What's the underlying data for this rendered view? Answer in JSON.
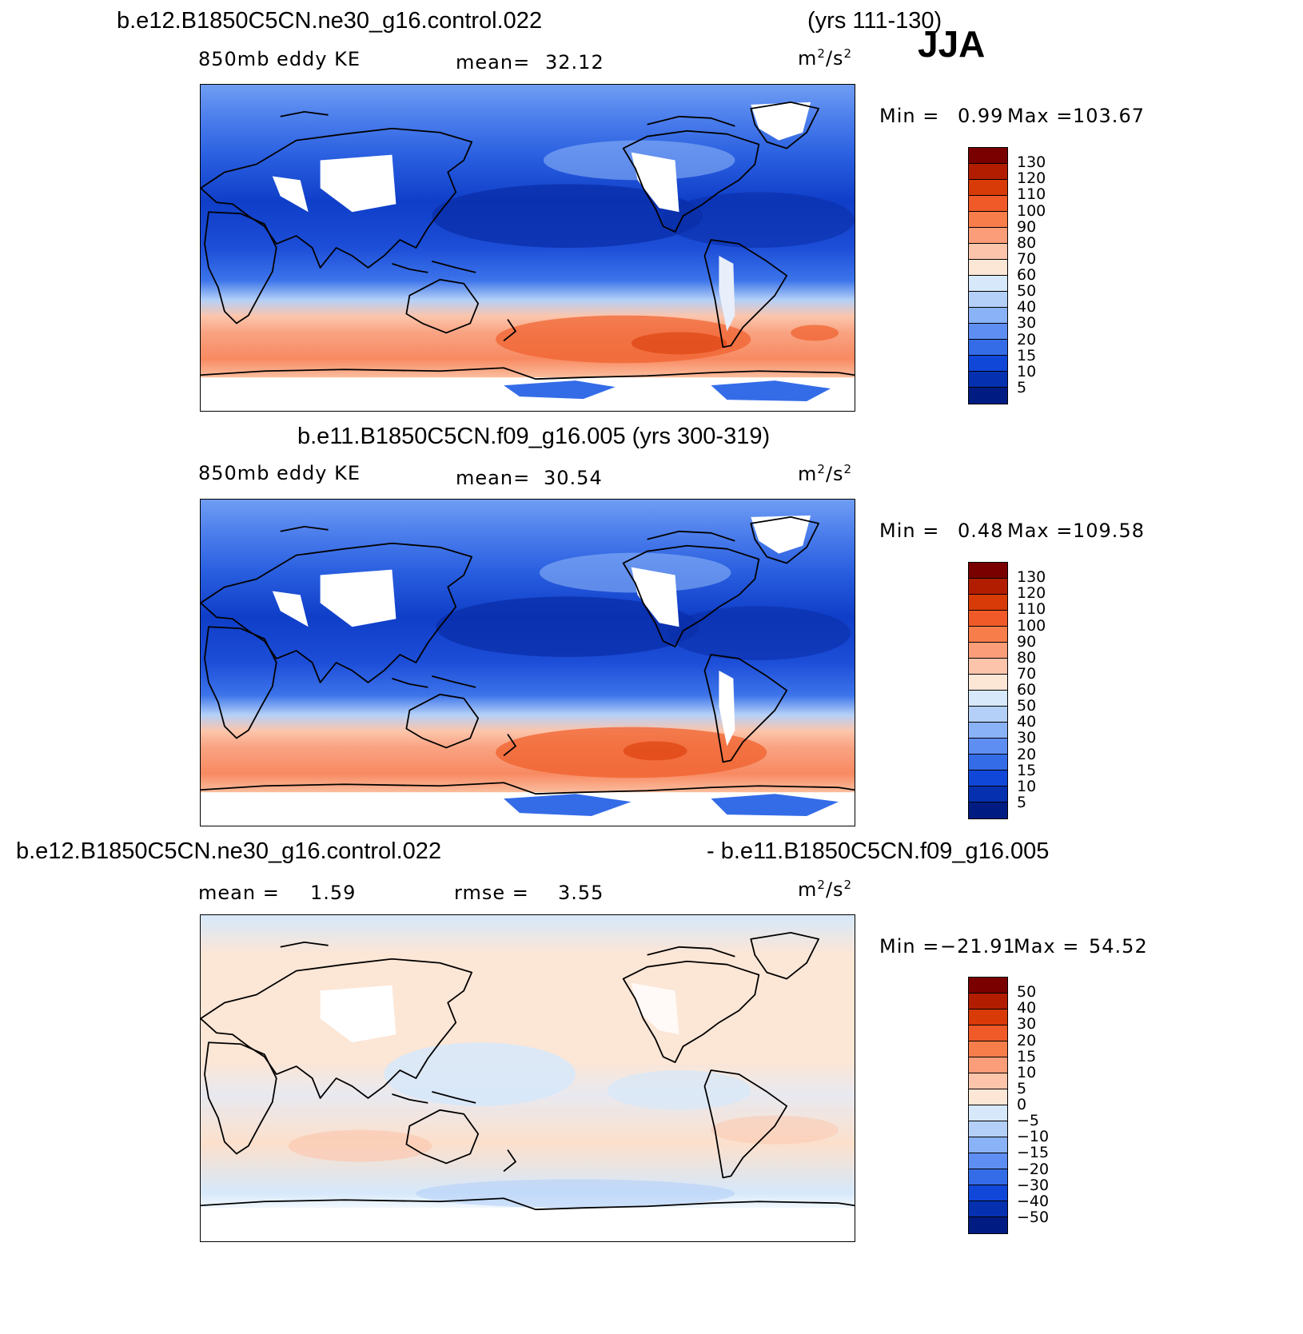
{
  "season": "JJA",
  "panel1": {
    "case": "b.e12.B1850C5CN.ne30_g16.control.022",
    "years": "(yrs 111-130)",
    "field": "850mb eddy KE",
    "mean_label": "mean=",
    "mean_value": "32.12",
    "unit_base": "m",
    "unit_exp1": "2",
    "unit_mid": "/s",
    "unit_exp2": "2",
    "min_label": "Min =",
    "min_value": "0.99",
    "max_label": "Max =",
    "max_value": "103.67"
  },
  "panel2": {
    "case": "b.e11.B1850C5CN.f09_g16.005 (yrs 300-319)",
    "field": "850mb eddy KE",
    "mean_label": "mean=",
    "mean_value": "30.54",
    "unit_base": "m",
    "unit_exp1": "2",
    "unit_mid": "/s",
    "unit_exp2": "2",
    "min_label": "Min =",
    "min_value": "0.48",
    "max_label": "Max =",
    "max_value": "109.58"
  },
  "panel3": {
    "case_left": "b.e12.B1850C5CN.ne30_g16.control.022",
    "case_right": "- b.e11.B1850C5CN.f09_g16.005",
    "mean_label": "mean =",
    "mean_value": "1.59",
    "rmse_label": "rmse =",
    "rmse_value": "3.55",
    "unit_base": "m",
    "unit_exp1": "2",
    "unit_mid": "/s",
    "unit_exp2": "2",
    "min_label": "Min =",
    "min_value": "−21.91",
    "max_label": "Max =",
    "max_value": "54.52"
  },
  "ke_scale": {
    "labels": [
      "130",
      "120",
      "110",
      "100",
      "90",
      "80",
      "70",
      "60",
      "50",
      "40",
      "30",
      "20",
      "15",
      "10",
      "5"
    ],
    "colors": [
      "#7a0000",
      "#b21d00",
      "#d83a08",
      "#f05a28",
      "#f77d4a",
      "#fa9d78",
      "#fcc5ab",
      "#fce6d6",
      "#d6e8fa",
      "#b4d0f8",
      "#8ab2f6",
      "#5e8ef2",
      "#346ce8",
      "#1147d9",
      "#0530b0",
      "#001c82"
    ]
  },
  "diff_scale": {
    "labels": [
      "50",
      "40",
      "30",
      "20",
      "15",
      "10",
      "5",
      "0",
      "−5",
      "−10",
      "−15",
      "−20",
      "−30",
      "−40",
      "−50"
    ],
    "colors": [
      "#7a0000",
      "#b21d00",
      "#d83a08",
      "#f05a28",
      "#f77d4a",
      "#fa9d78",
      "#fcc5ab",
      "#fce6d6",
      "#d6e8fa",
      "#b4d0f8",
      "#8ab2f6",
      "#5e8ef2",
      "#346ce8",
      "#1147d9",
      "#0530b0",
      "#001c82"
    ]
  }
}
